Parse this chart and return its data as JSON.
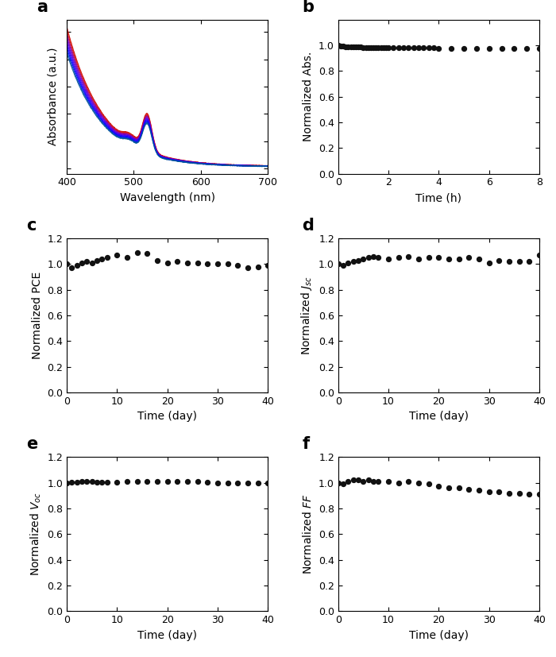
{
  "panel_a": {
    "label": "a",
    "xlabel": "Wavelength (nm)",
    "ylabel": "Absorbance (a.u.)",
    "xlim": [
      400,
      700
    ],
    "xticks": [
      400,
      500,
      600,
      700
    ],
    "num_curves": 10,
    "colors": [
      "#cc0000",
      "#dd2200",
      "#aa0066",
      "#8800aa",
      "#6600cc",
      "#4400ee",
      "#2200ff",
      "#0000ff",
      "#0033cc",
      "#005599"
    ]
  },
  "panel_b": {
    "label": "b",
    "xlabel": "Time (h)",
    "ylabel": "Normalized Abs.",
    "xlim": [
      0,
      8
    ],
    "ylim": [
      0.0,
      1.2
    ],
    "yticks": [
      0.0,
      0.2,
      0.4,
      0.6,
      0.8,
      1.0
    ],
    "xticks": [
      0,
      2,
      4,
      6,
      8
    ],
    "data_x": [
      0.0,
      0.1,
      0.2,
      0.3,
      0.4,
      0.5,
      0.6,
      0.7,
      0.8,
      0.9,
      1.0,
      1.1,
      1.2,
      1.3,
      1.4,
      1.5,
      1.6,
      1.7,
      1.8,
      1.9,
      2.0,
      2.2,
      2.4,
      2.6,
      2.8,
      3.0,
      3.2,
      3.4,
      3.6,
      3.8,
      4.0,
      4.5,
      5.0,
      5.5,
      6.0,
      6.5,
      7.0,
      7.5,
      8.0
    ],
    "data_y": [
      1.0,
      0.995,
      0.992,
      0.99,
      0.989,
      0.988,
      0.987,
      0.987,
      0.986,
      0.986,
      0.985,
      0.984,
      0.984,
      0.984,
      0.983,
      0.983,
      0.983,
      0.983,
      0.982,
      0.982,
      0.982,
      0.981,
      0.981,
      0.981,
      0.98,
      0.98,
      0.98,
      0.98,
      0.98,
      0.98,
      0.979,
      0.979,
      0.979,
      0.978,
      0.979,
      0.979,
      0.979,
      0.979,
      0.979
    ]
  },
  "panel_c": {
    "label": "c",
    "xlabel": "Time (day)",
    "ylabel": "Normalized PCE",
    "xlim": [
      0,
      40
    ],
    "ylim": [
      0.0,
      1.2
    ],
    "yticks": [
      0.0,
      0.2,
      0.4,
      0.6,
      0.8,
      1.0,
      1.2
    ],
    "xticks": [
      0,
      10,
      20,
      30,
      40
    ],
    "data_x": [
      0,
      1,
      2,
      3,
      4,
      5,
      6,
      7,
      8,
      10,
      12,
      14,
      16,
      18,
      20,
      22,
      24,
      26,
      28,
      30,
      32,
      34,
      36,
      38,
      40
    ],
    "data_y": [
      1.0,
      0.97,
      0.99,
      1.01,
      1.02,
      1.01,
      1.03,
      1.04,
      1.05,
      1.07,
      1.05,
      1.09,
      1.08,
      1.03,
      1.01,
      1.02,
      1.01,
      1.01,
      1.0,
      1.0,
      1.0,
      0.99,
      0.97,
      0.98,
      0.99
    ]
  },
  "panel_d": {
    "label": "d",
    "xlabel": "Time (day)",
    "ylabel": "Normalized $J_{sc}$",
    "xlim": [
      0,
      40
    ],
    "ylim": [
      0.0,
      1.2
    ],
    "yticks": [
      0.0,
      0.2,
      0.4,
      0.6,
      0.8,
      1.0,
      1.2
    ],
    "xticks": [
      0,
      10,
      20,
      30,
      40
    ],
    "data_x": [
      0,
      1,
      2,
      3,
      4,
      5,
      6,
      7,
      8,
      10,
      12,
      14,
      16,
      18,
      20,
      22,
      24,
      26,
      28,
      30,
      32,
      34,
      36,
      38,
      40
    ],
    "data_y": [
      1.0,
      0.99,
      1.01,
      1.02,
      1.03,
      1.04,
      1.05,
      1.06,
      1.05,
      1.04,
      1.05,
      1.06,
      1.04,
      1.05,
      1.05,
      1.04,
      1.04,
      1.05,
      1.04,
      1.01,
      1.03,
      1.02,
      1.02,
      1.02,
      1.07
    ]
  },
  "panel_e": {
    "label": "e",
    "xlabel": "Time (day)",
    "ylabel": "Normalized $V_{oc}$",
    "xlim": [
      0,
      40
    ],
    "ylim": [
      0.0,
      1.2
    ],
    "yticks": [
      0.0,
      0.2,
      0.4,
      0.6,
      0.8,
      1.0,
      1.2
    ],
    "xticks": [
      0,
      10,
      20,
      30,
      40
    ],
    "data_x": [
      0,
      1,
      2,
      3,
      4,
      5,
      6,
      7,
      8,
      10,
      12,
      14,
      16,
      18,
      20,
      22,
      24,
      26,
      28,
      30,
      32,
      34,
      36,
      38,
      40
    ],
    "data_y": [
      1.0,
      1.005,
      1.005,
      1.01,
      1.01,
      1.01,
      1.005,
      1.005,
      1.005,
      1.005,
      1.01,
      1.01,
      1.01,
      1.01,
      1.01,
      1.01,
      1.01,
      1.01,
      1.005,
      1.0,
      1.0,
      1.0,
      1.0,
      1.0,
      1.0
    ]
  },
  "panel_f": {
    "label": "f",
    "xlabel": "Time (day)",
    "ylabel": "Normalized $FF$",
    "xlim": [
      0,
      40
    ],
    "ylim": [
      0.0,
      1.2
    ],
    "yticks": [
      0.0,
      0.2,
      0.4,
      0.6,
      0.8,
      1.0,
      1.2
    ],
    "xticks": [
      0,
      10,
      20,
      30,
      40
    ],
    "data_x": [
      0,
      1,
      2,
      3,
      4,
      5,
      6,
      7,
      8,
      10,
      12,
      14,
      16,
      18,
      20,
      22,
      24,
      26,
      28,
      30,
      32,
      34,
      36,
      38,
      40
    ],
    "data_y": [
      1.0,
      0.99,
      1.01,
      1.02,
      1.02,
      1.01,
      1.02,
      1.01,
      1.01,
      1.01,
      1.0,
      1.01,
      1.0,
      0.99,
      0.97,
      0.96,
      0.96,
      0.95,
      0.94,
      0.93,
      0.93,
      0.92,
      0.92,
      0.91,
      0.91
    ]
  },
  "dot_color": "#111111",
  "dot_size": 18,
  "label_fontsize": 15,
  "tick_fontsize": 9,
  "axis_label_fontsize": 10
}
